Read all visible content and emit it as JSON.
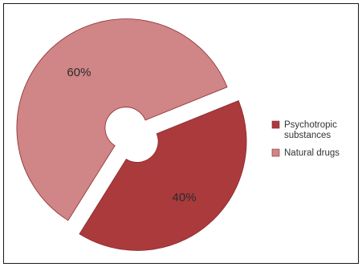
{
  "chart_data": {
    "type": "pie",
    "style": "exploded-donut",
    "slices": [
      {
        "name": "Psychotropic substances",
        "value": 40,
        "label": "40%",
        "color": "#ab3a3d"
      },
      {
        "name": "Natural drugs",
        "value": 60,
        "label": "60%",
        "color": "#d08587"
      }
    ],
    "legend": {
      "placement": "right",
      "entries": [
        {
          "lines": [
            "Psychotropic",
            "substances"
          ],
          "color": "#ab3a3d"
        },
        {
          "lines": [
            "Natural drugs"
          ],
          "color": "#d08587"
        }
      ]
    },
    "stroke_color": "#8a2a2d"
  }
}
